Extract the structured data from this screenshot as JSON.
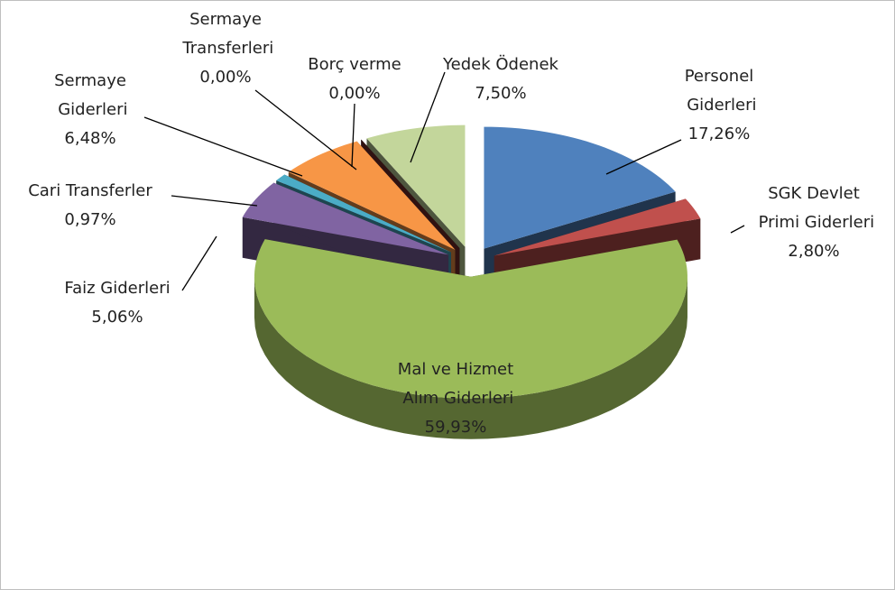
{
  "chart_data": {
    "type": "pie3d",
    "categories": [
      "Personel Giderleri",
      "SGK Devlet Primi Giderleri",
      "Mal ve Hizmet Alım Giderleri",
      "Faiz Giderleri",
      "Cari Transferler",
      "Sermaye Giderleri",
      "Sermaye Transferleri",
      "Borç verme",
      "Yedek Ödenek"
    ],
    "values": [
      17.26,
      2.8,
      59.93,
      5.06,
      0.97,
      6.48,
      0.0,
      0.0,
      7.5
    ],
    "value_labels": [
      "17,26%",
      "2,80%",
      "59,93%",
      "5,06%",
      "0,97%",
      "6,48%",
      "0,00%",
      "0,00%",
      "7,50%"
    ],
    "colors": [
      "#4f81bd",
      "#c0504d",
      "#9bbb59",
      "#8064a2",
      "#4bacc6",
      "#f79646",
      "#2c4d75",
      "#772c2a",
      "#c3d69b"
    ]
  }
}
